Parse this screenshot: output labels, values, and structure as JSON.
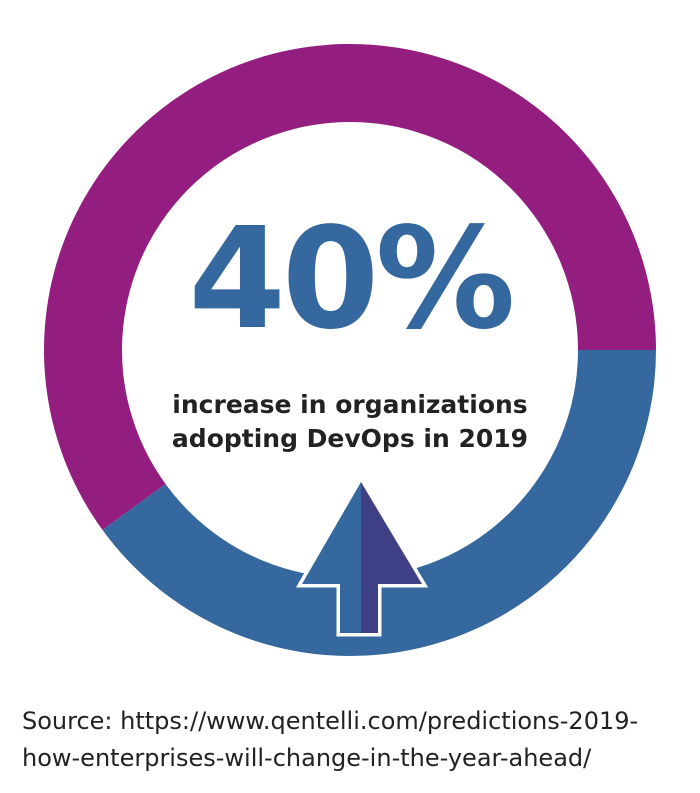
{
  "chart_data": {
    "type": "pie",
    "style": "donut",
    "slices": [
      {
        "label": "",
        "value": 40,
        "color": "#34689e"
      },
      {
        "label": "",
        "value": 60,
        "color": "#931e80"
      }
    ]
  },
  "stat": {
    "value": "40%",
    "color": "#34689e"
  },
  "caption": {
    "line1": "increase in organizations",
    "line2": "adopting DevOps in 2019"
  },
  "source": {
    "line1": "Source: https://www.qentelli.com/predictions-2019-",
    "line2": "how-enterprises-will-change-in-the-year-ahead/"
  },
  "arrow": {
    "icon": "up-arrow-icon",
    "left_color": "#34689e",
    "right_color": "#3f3f86",
    "outline_color": "#ffffff"
  }
}
